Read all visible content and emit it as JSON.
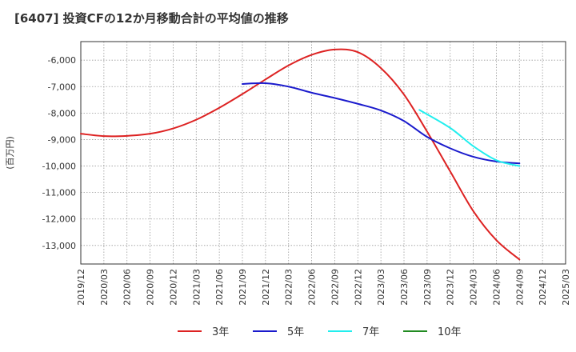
{
  "chart_data": {
    "type": "line",
    "title": "[6407]  投資CFの12か月移動合計の平均値の推移",
    "ylabel": "(百万円)",
    "xlabel": "",
    "ylim": [
      -13700,
      -5300
    ],
    "yticks": [
      -6000,
      -7000,
      -8000,
      -9000,
      -10000,
      -11000,
      -12000,
      -13000
    ],
    "ytick_labels": [
      "-6,000",
      "-7,000",
      "-8,000",
      "-9,000",
      "-10,000",
      "-11,000",
      "-12,000",
      "-13,000"
    ],
    "xticks": [
      "2019/12",
      "2020/03",
      "2020/06",
      "2020/09",
      "2020/12",
      "2021/03",
      "2021/06",
      "2021/09",
      "2021/12",
      "2022/03",
      "2022/06",
      "2022/09",
      "2022/12",
      "2023/03",
      "2023/06",
      "2023/09",
      "2023/12",
      "2024/03",
      "2024/06",
      "2024/09",
      "2024/12",
      "2025/03"
    ],
    "grid": true,
    "legend_position": "bottom",
    "series": [
      {
        "name": "3年",
        "color": "#dd2222",
        "x": [
          "2019/12",
          "2020/03",
          "2020/06",
          "2020/09",
          "2020/12",
          "2021/03",
          "2021/06",
          "2021/09",
          "2021/12",
          "2022/03",
          "2022/06",
          "2022/09",
          "2022/12",
          "2023/03",
          "2023/06",
          "2023/09",
          "2023/12",
          "2024/03",
          "2024/06",
          "2024/09"
        ],
        "values": [
          -8780,
          -8870,
          -8860,
          -8780,
          -8580,
          -8250,
          -7800,
          -7280,
          -6730,
          -6200,
          -5800,
          -5600,
          -5700,
          -6300,
          -7300,
          -8700,
          -10200,
          -11700,
          -12800,
          -13530
        ]
      },
      {
        "name": "5年",
        "color": "#1a1acc",
        "x": [
          "2021/09",
          "2021/12",
          "2022/03",
          "2022/06",
          "2022/09",
          "2022/12",
          "2023/03",
          "2023/06",
          "2023/09",
          "2023/12",
          "2024/03",
          "2024/06",
          "2024/09"
        ],
        "values": [
          -6900,
          -6870,
          -7000,
          -7230,
          -7430,
          -7650,
          -7900,
          -8300,
          -8900,
          -9330,
          -9650,
          -9830,
          -9900
        ]
      },
      {
        "name": "7年",
        "color": "#22eeee",
        "x": [
          "2023/08",
          "2023/12",
          "2024/03",
          "2024/06",
          "2024/09"
        ],
        "values": [
          -7880,
          -8560,
          -9250,
          -9780,
          -10000
        ]
      },
      {
        "name": "10年",
        "color": "#228b22",
        "x": [],
        "values": []
      }
    ]
  }
}
